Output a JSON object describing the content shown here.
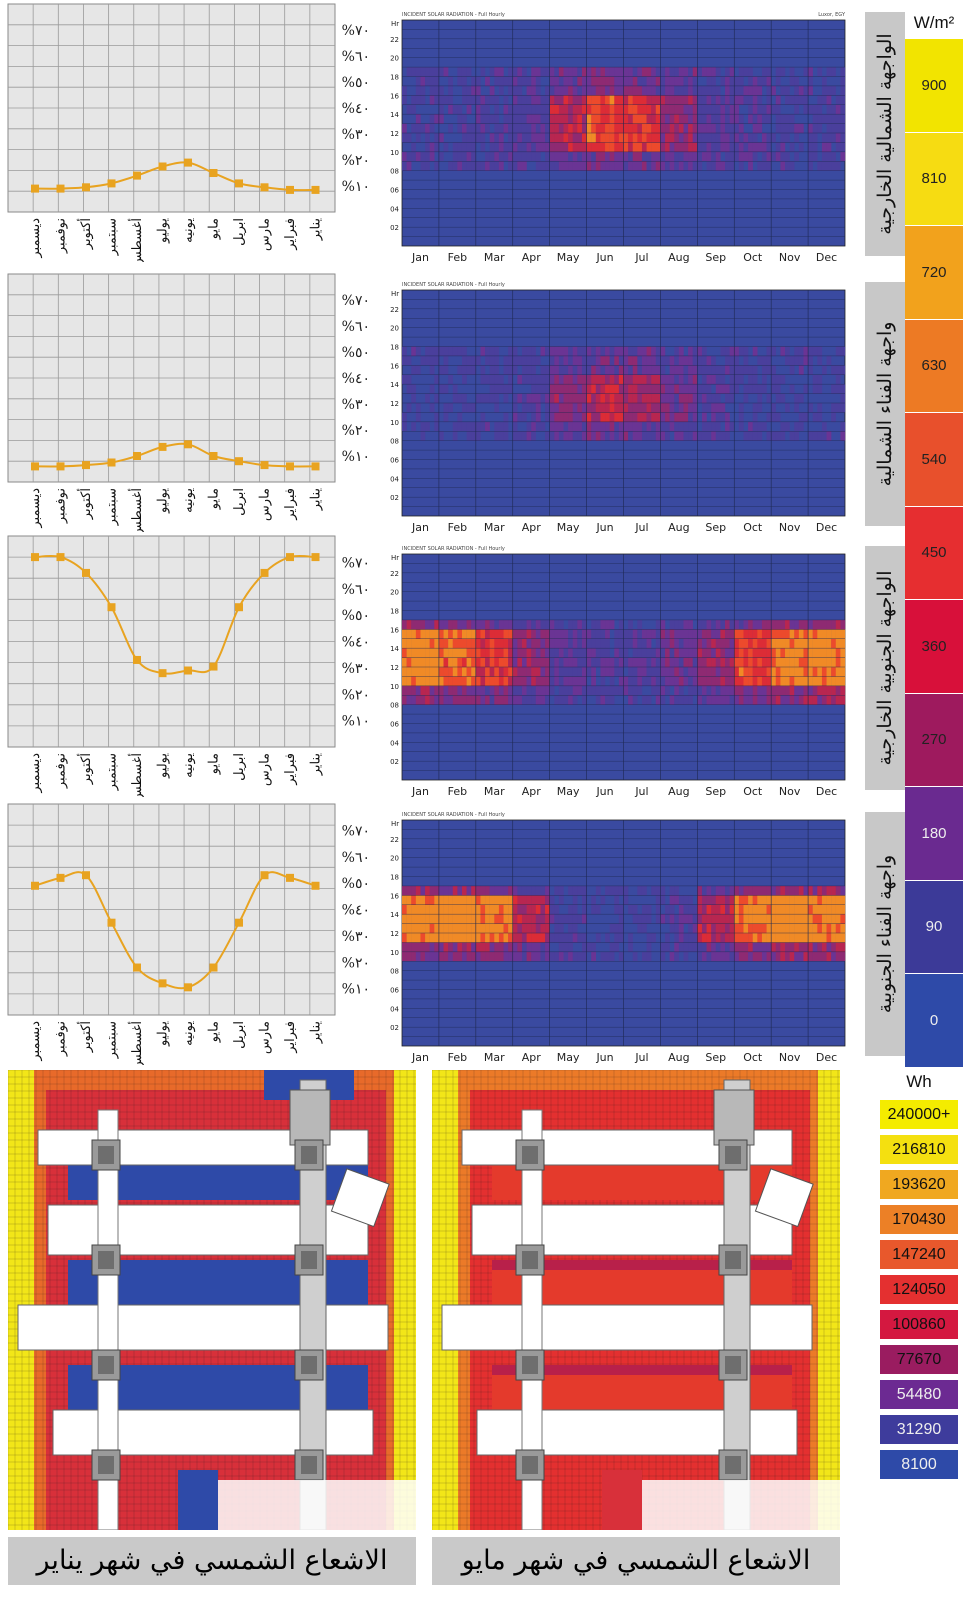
{
  "chart_data": [
    {
      "type": "line",
      "name_label": "الواجهة الشمالية الخارجية",
      "categories": [
        "ديسمبر",
        "نوفمبر",
        "أكتوبر",
        "سبتمبر",
        "أغسطس",
        "يوليو",
        "يونيه",
        "مايو",
        "ابريل",
        "مارس",
        "فبراير",
        "يناير"
      ],
      "values": [
        9,
        9,
        9.5,
        11,
        14,
        17.5,
        19,
        15,
        11,
        9.5,
        8.5,
        8.5
      ],
      "ylim": [
        0,
        80
      ],
      "yticks": [
        "%١٠",
        "%٢٠",
        "%٣٠",
        "%٤٠",
        "%٥٠",
        "%٦٠",
        "%٧٠"
      ]
    },
    {
      "type": "line",
      "name_label": "واجهة الفناء الشمالية",
      "categories": [
        "ديسمبر",
        "نوفمبر",
        "أكتوبر",
        "سبتمبر",
        "أغسطس",
        "يوليو",
        "يونيه",
        "مايو",
        "ابريل",
        "مارس",
        "فبراير",
        "يناير"
      ],
      "values": [
        6,
        6,
        6.5,
        7.5,
        10,
        13.5,
        14.5,
        10,
        8,
        6.5,
        6,
        6
      ],
      "ylim": [
        0,
        80
      ],
      "yticks": [
        "%١٠",
        "%٢٠",
        "%٣٠",
        "%٤٠",
        "%٥٠",
        "%٦٠",
        "%٧٠"
      ]
    },
    {
      "type": "line",
      "name_label": "الواجهة الجنوبية الخارجية",
      "categories": [
        "ديسمبر",
        "نوفمبر",
        "أكتوبر",
        "سبتمبر",
        "أغسطس",
        "يوليو",
        "يونيه",
        "مايو",
        "ابريل",
        "مارس",
        "فبراير",
        "يناير"
      ],
      "values": [
        72,
        72,
        66,
        53,
        33,
        28,
        29,
        30.5,
        53,
        66,
        72,
        72
      ],
      "ylim": [
        0,
        80
      ],
      "yticks": [
        "%١٠",
        "%٢٠",
        "%٣٠",
        "%٤٠",
        "%٥٠",
        "%٦٠",
        "%٧٠"
      ]
    },
    {
      "type": "line",
      "name_label": "واجهة الفناء الجنوبية",
      "categories": [
        "ديسمبر",
        "نوفمبر",
        "أكتوبر",
        "سبتمبر",
        "أغسطس",
        "يوليو",
        "يونيه",
        "مايو",
        "ابريل",
        "مارس",
        "فبراير",
        "يناير"
      ],
      "values": [
        49,
        52,
        53,
        35,
        18,
        12,
        10.5,
        18,
        35,
        53,
        52,
        49
      ],
      "ylim": [
        0,
        80
      ],
      "yticks": [
        "%١٠",
        "%٢٠",
        "%٣٠",
        "%٤٠",
        "%٥٠",
        "%٦٠",
        "%٧٠"
      ]
    }
  ],
  "heatmaps": {
    "header": "INCIDENT SOLAR RADIATION - Full Hourly",
    "location": "Luxor, EGY",
    "hr_label": "Hr",
    "hours": [
      "22",
      "20",
      "18",
      "16",
      "14",
      "12",
      "10",
      "08",
      "06",
      "04",
      "02"
    ],
    "months": [
      "Jan",
      "Feb",
      "Mar",
      "Apr",
      "May",
      "Jun",
      "Jul",
      "Aug",
      "Sep",
      "Oct",
      "Nov",
      "Dec"
    ],
    "colors": {
      "base": "#3a4aa0",
      "mid": "#5a3a9a",
      "warm": "#b0305a",
      "hot": "#e84030",
      "peak": "#f0b020"
    }
  },
  "scale": {
    "unit": "W/m²",
    "steps": [
      {
        "value": "900",
        "color": "#f2e400"
      },
      {
        "value": "810",
        "color": "#f6dc12"
      },
      {
        "value": "720",
        "color": "#f2a21c"
      },
      {
        "value": "630",
        "color": "#ed7a24"
      },
      {
        "value": "540",
        "color": "#e8502c"
      },
      {
        "value": "450",
        "color": "#e62e30"
      },
      {
        "value": "360",
        "color": "#d8103a"
      },
      {
        "value": "270",
        "color": "#9e1a5e"
      },
      {
        "value": "180",
        "color": "#6a2a90"
      },
      {
        "value": "90",
        "color": "#3c3a98"
      },
      {
        "value": "0",
        "color": "#2e4aa8"
      }
    ]
  },
  "wh_scale": {
    "unit": "Wh",
    "steps": [
      {
        "value": "240000+",
        "color": "#f4ec00"
      },
      {
        "value": "216810",
        "color": "#f4e010"
      },
      {
        "value": "193620",
        "color": "#f0a820"
      },
      {
        "value": "170430",
        "color": "#ec8026"
      },
      {
        "value": "147240",
        "color": "#e8582c"
      },
      {
        "value": "124050",
        "color": "#e43030"
      },
      {
        "value": "100860",
        "color": "#d41840"
      },
      {
        "value": "77670",
        "color": "#9a1c60"
      },
      {
        "value": "54480",
        "color": "#6c2a92"
      },
      {
        "value": "31290",
        "color": "#3e3c9c"
      },
      {
        "value": "8100",
        "color": "#2e4aa8"
      }
    ]
  },
  "captions": {
    "january": "الاشعاع الشمسي في شهر يناير",
    "may": "الاشعاع الشمسي في شهر مايو"
  }
}
